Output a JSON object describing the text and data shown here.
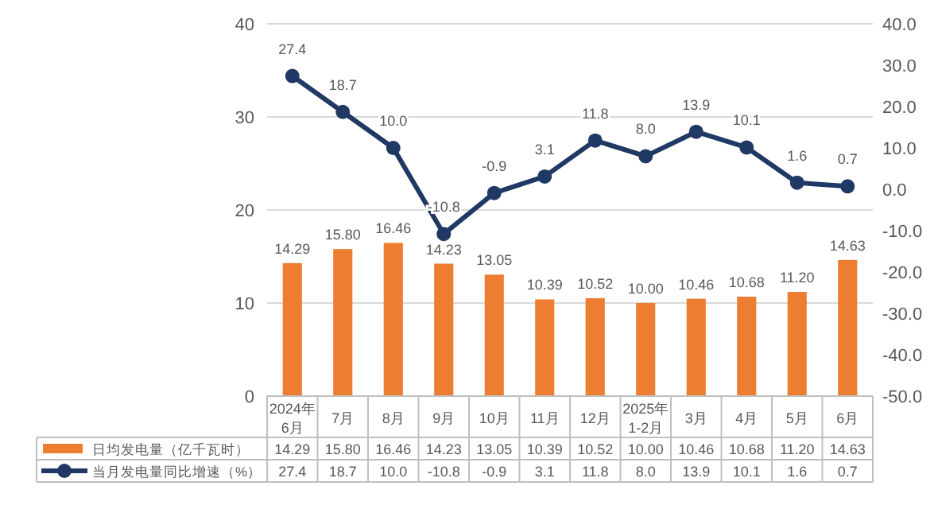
{
  "chart_data": {
    "type": "bar",
    "categories": [
      "2024年\n6月",
      "7月",
      "8月",
      "9月",
      "10月",
      "11月",
      "12月",
      "2025年\n1-2月",
      "3月",
      "4月",
      "5月",
      "6月"
    ],
    "series": [
      {
        "name": "日均发电量（亿千瓦时）",
        "color": "#ed7d31",
        "values": [
          14.29,
          15.8,
          16.46,
          14.23,
          13.05,
          10.39,
          10.52,
          10.0,
          10.46,
          10.68,
          11.2,
          14.63
        ],
        "value_labels": [
          "14.29",
          "15.80",
          "16.46",
          "14.23",
          "13.05",
          "10.39",
          "10.52",
          "10.00",
          "10.46",
          "10.68",
          "11.20",
          "14.63"
        ]
      },
      {
        "name": "当月发电量同比增速（%）",
        "type": "line",
        "axis": "y2",
        "color": "#203864",
        "values": [
          27.4,
          18.7,
          10.0,
          -10.8,
          -0.9,
          3.1,
          11.8,
          8.0,
          13.9,
          10.1,
          1.6,
          0.7
        ],
        "value_labels": [
          "27.4",
          "18.7",
          "10.0",
          "-10.8",
          "-0.9",
          "3.1",
          "11.8",
          "8.0",
          "13.9",
          "10.1",
          "1.6",
          "0.7"
        ]
      }
    ],
    "ylim": [
      0,
      40
    ],
    "yticks": [
      0,
      10,
      20,
      30,
      40
    ],
    "y2lim": [
      -50,
      40
    ],
    "y2ticks": [
      {
        "value": -50,
        "label": "-50.0"
      },
      {
        "value": -40,
        "label": "-40.0"
      },
      {
        "value": -30,
        "label": "-30.0"
      },
      {
        "value": -20,
        "label": "-20.0"
      },
      {
        "value": -10,
        "label": "-10.0"
      },
      {
        "value": 0,
        "label": "0.0"
      },
      {
        "value": 10,
        "label": "10.0"
      },
      {
        "value": 20,
        "label": "20.0"
      },
      {
        "value": 30,
        "label": "30.0"
      },
      {
        "value": 40,
        "label": "40.0"
      }
    ],
    "grid": "y",
    "legend": "bottom",
    "marker": "circle",
    "line_style": "solid"
  }
}
